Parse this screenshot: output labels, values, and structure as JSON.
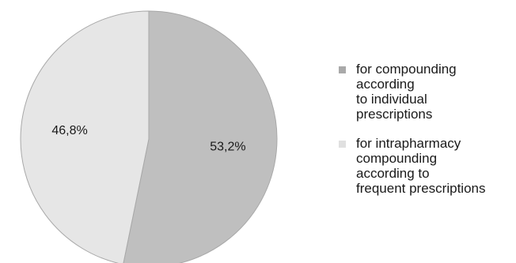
{
  "chart_data": {
    "type": "pie",
    "title": "",
    "slices": [
      {
        "label": "for compounding\naccording\nto individual\nprescriptions",
        "value": 53.2,
        "value_label": "53,2%",
        "color": "#bfbfbf"
      },
      {
        "label": "for intrapharmacy\ncompounding\naccording to\nfrequent prescriptions",
        "value": 46.8,
        "value_label": "46,8%",
        "color": "#e6e6e6"
      }
    ],
    "start_angle": "12 o'clock",
    "direction": "clockwise",
    "legend_position": "right"
  }
}
